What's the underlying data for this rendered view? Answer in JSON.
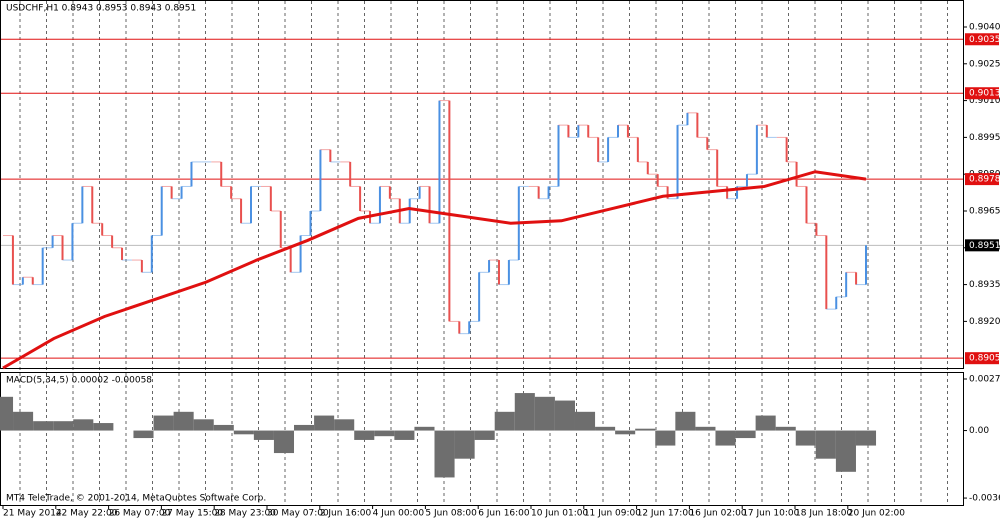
{
  "chart_data": [
    {
      "type": "price",
      "title": "USDCHF,H1  0.8943 0.8953 0.8943 0.8951",
      "values": [
        0.8955,
        0.8935,
        0.8938,
        0.8935,
        0.895,
        0.8955,
        0.8945,
        0.896,
        0.8975,
        0.896,
        0.8955,
        0.895,
        0.8945,
        0.8945,
        0.894,
        0.8955,
        0.8975,
        0.897,
        0.8975,
        0.8985,
        0.8985,
        0.8985,
        0.8975,
        0.897,
        0.896,
        0.8975,
        0.8975,
        0.8965,
        0.895,
        0.894,
        0.8955,
        0.8965,
        0.899,
        0.8985,
        0.8985,
        0.8975,
        0.8965,
        0.896,
        0.8975,
        0.897,
        0.896,
        0.897,
        0.8975,
        0.896,
        0.901,
        0.892,
        0.8915,
        0.892,
        0.894,
        0.8945,
        0.8935,
        0.8945,
        0.8975,
        0.8975,
        0.897,
        0.8975,
        0.9,
        0.8995,
        0.9,
        0.8995,
        0.8985,
        0.8995,
        0.9,
        0.8995,
        0.8985,
        0.898,
        0.8975,
        0.897,
        0.9,
        0.9005,
        0.8995,
        0.899,
        0.8975,
        0.897,
        0.8975,
        0.898,
        0.9,
        0.8995,
        0.8995,
        0.8985,
        0.8975,
        0.896,
        0.8955,
        0.8925,
        0.893,
        0.894,
        0.8935,
        0.8951
      ],
      "up_color": "#4a90e2",
      "down_color": "#e8504e",
      "series": [
        {
          "name": "MA",
          "color": "#e01010",
          "values": [
            0.8901,
            0.8913,
            0.8922,
            0.8929,
            0.8936,
            0.8945,
            0.8953,
            0.8962,
            0.8966,
            0.8963,
            0.896,
            0.8961,
            0.8966,
            0.8971,
            0.8973,
            0.8975,
            0.8981,
            0.8978
          ]
        }
      ],
      "levels": [
        {
          "value": 0.9035,
          "label": "0.9035"
        },
        {
          "value": 0.9013,
          "label": "0.9013"
        },
        {
          "value": 0.8978,
          "label": "0.8978"
        },
        {
          "value": 0.8905,
          "label": "0.8905"
        }
      ],
      "level_color": "#e01010",
      "current": {
        "value": 0.8951,
        "label": "0.8951"
      },
      "ylim": [
        0.8901,
        0.9051
      ],
      "yticks": [
        {
          "value": 0.904,
          "label": "0.9040"
        },
        {
          "value": 0.9025,
          "label": "0.9025"
        },
        {
          "value": 0.901,
          "label": "0.9010"
        },
        {
          "value": 0.8995,
          "label": "0.8995"
        },
        {
          "value": 0.898,
          "label": "0.8980"
        },
        {
          "value": 0.8965,
          "label": "0.8965"
        },
        {
          "value": 0.895,
          "label": "0.8950"
        },
        {
          "value": 0.8935,
          "label": "0.8935"
        },
        {
          "value": 0.892,
          "label": "0.8920"
        }
      ],
      "xlabels": [
        "21 May 2014",
        "22 May 22:00",
        "26 May 07:00",
        "27 May 15:00",
        "28 May 23:00",
        "30 May 07:00",
        "2 Jun 16:00",
        "4 Jun 00:00",
        "5 Jun 08:00",
        "6 Jun 16:00",
        "10 Jun 01:00",
        "11 Jun 09:00",
        "12 Jun 17:00",
        "16 Jun 02:00",
        "17 Jun 10:00",
        "18 Jun 18:00",
        "20 Jun 02:00"
      ]
    },
    {
      "type": "histogram",
      "title": "MACD(5,34,5) 0.00002 -0.00058",
      "color": "#6e6e6e",
      "values": [
        0.0018,
        0.001,
        0.0005,
        0.0005,
        0.0006,
        0.0004,
        0.0,
        -0.0004,
        0.0008,
        0.001,
        0.0006,
        0.0003,
        -0.0002,
        -0.0005,
        -0.0012,
        0.0003,
        0.0008,
        0.0006,
        -0.0005,
        -0.0003,
        -0.0005,
        0.0002,
        -0.0025,
        -0.0015,
        -0.0005,
        0.001,
        0.002,
        0.0018,
        0.0016,
        0.001,
        0.0002,
        -0.0002,
        0.0001,
        -0.0008,
        0.001,
        0.0002,
        -0.0008,
        -0.0004,
        0.0008,
        0.0002,
        -0.0008,
        -0.0015,
        -0.0022,
        -0.0008
      ],
      "ylim": [
        -0.00397,
        0.00307
      ],
      "yticks": [
        0.00275,
        {
          "value": 0,
          "label": "0.00"
        },
        -0.0036
      ],
      "footer": "MT4 TeleTrade, © 2001-2014, MetaQuotes Software Corp."
    }
  ]
}
